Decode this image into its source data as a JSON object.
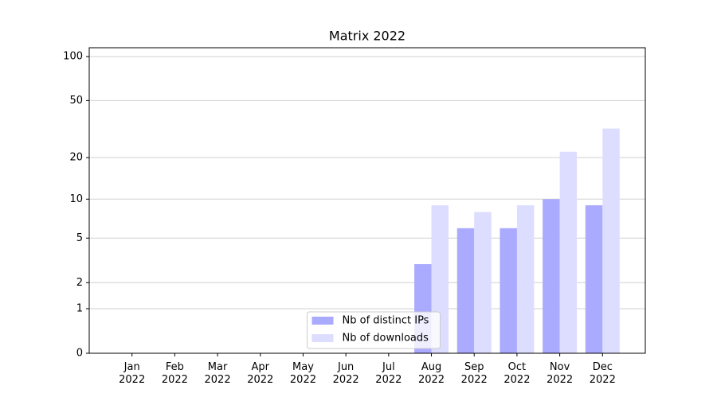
{
  "chart_data": {
    "type": "bar",
    "title": "Matrix 2022",
    "categories": [
      "Jan\n2022",
      "Feb\n2022",
      "Mar\n2022",
      "Apr\n2022",
      "May\n2022",
      "Jun\n2022",
      "Jul\n2022",
      "Aug\n2022",
      "Sep\n2022",
      "Oct\n2022",
      "Nov\n2022",
      "Dec\n2022"
    ],
    "series": [
      {
        "name": "Nb of distinct IPs",
        "color": "#aaaaff",
        "values": [
          0,
          0,
          0,
          0,
          0,
          0,
          0,
          3,
          6,
          6,
          10,
          9
        ]
      },
      {
        "name": "Nb of downloads",
        "color": "#ddddff",
        "values": [
          0,
          0,
          0,
          0,
          0,
          0,
          0,
          9,
          8,
          9,
          22,
          32
        ]
      }
    ],
    "yscale": "log1p",
    "ylim": [
      0,
      115
    ],
    "yticks": [
      0,
      1,
      2,
      5,
      10,
      20,
      50,
      100
    ],
    "grid": true,
    "legend": "lower center"
  }
}
